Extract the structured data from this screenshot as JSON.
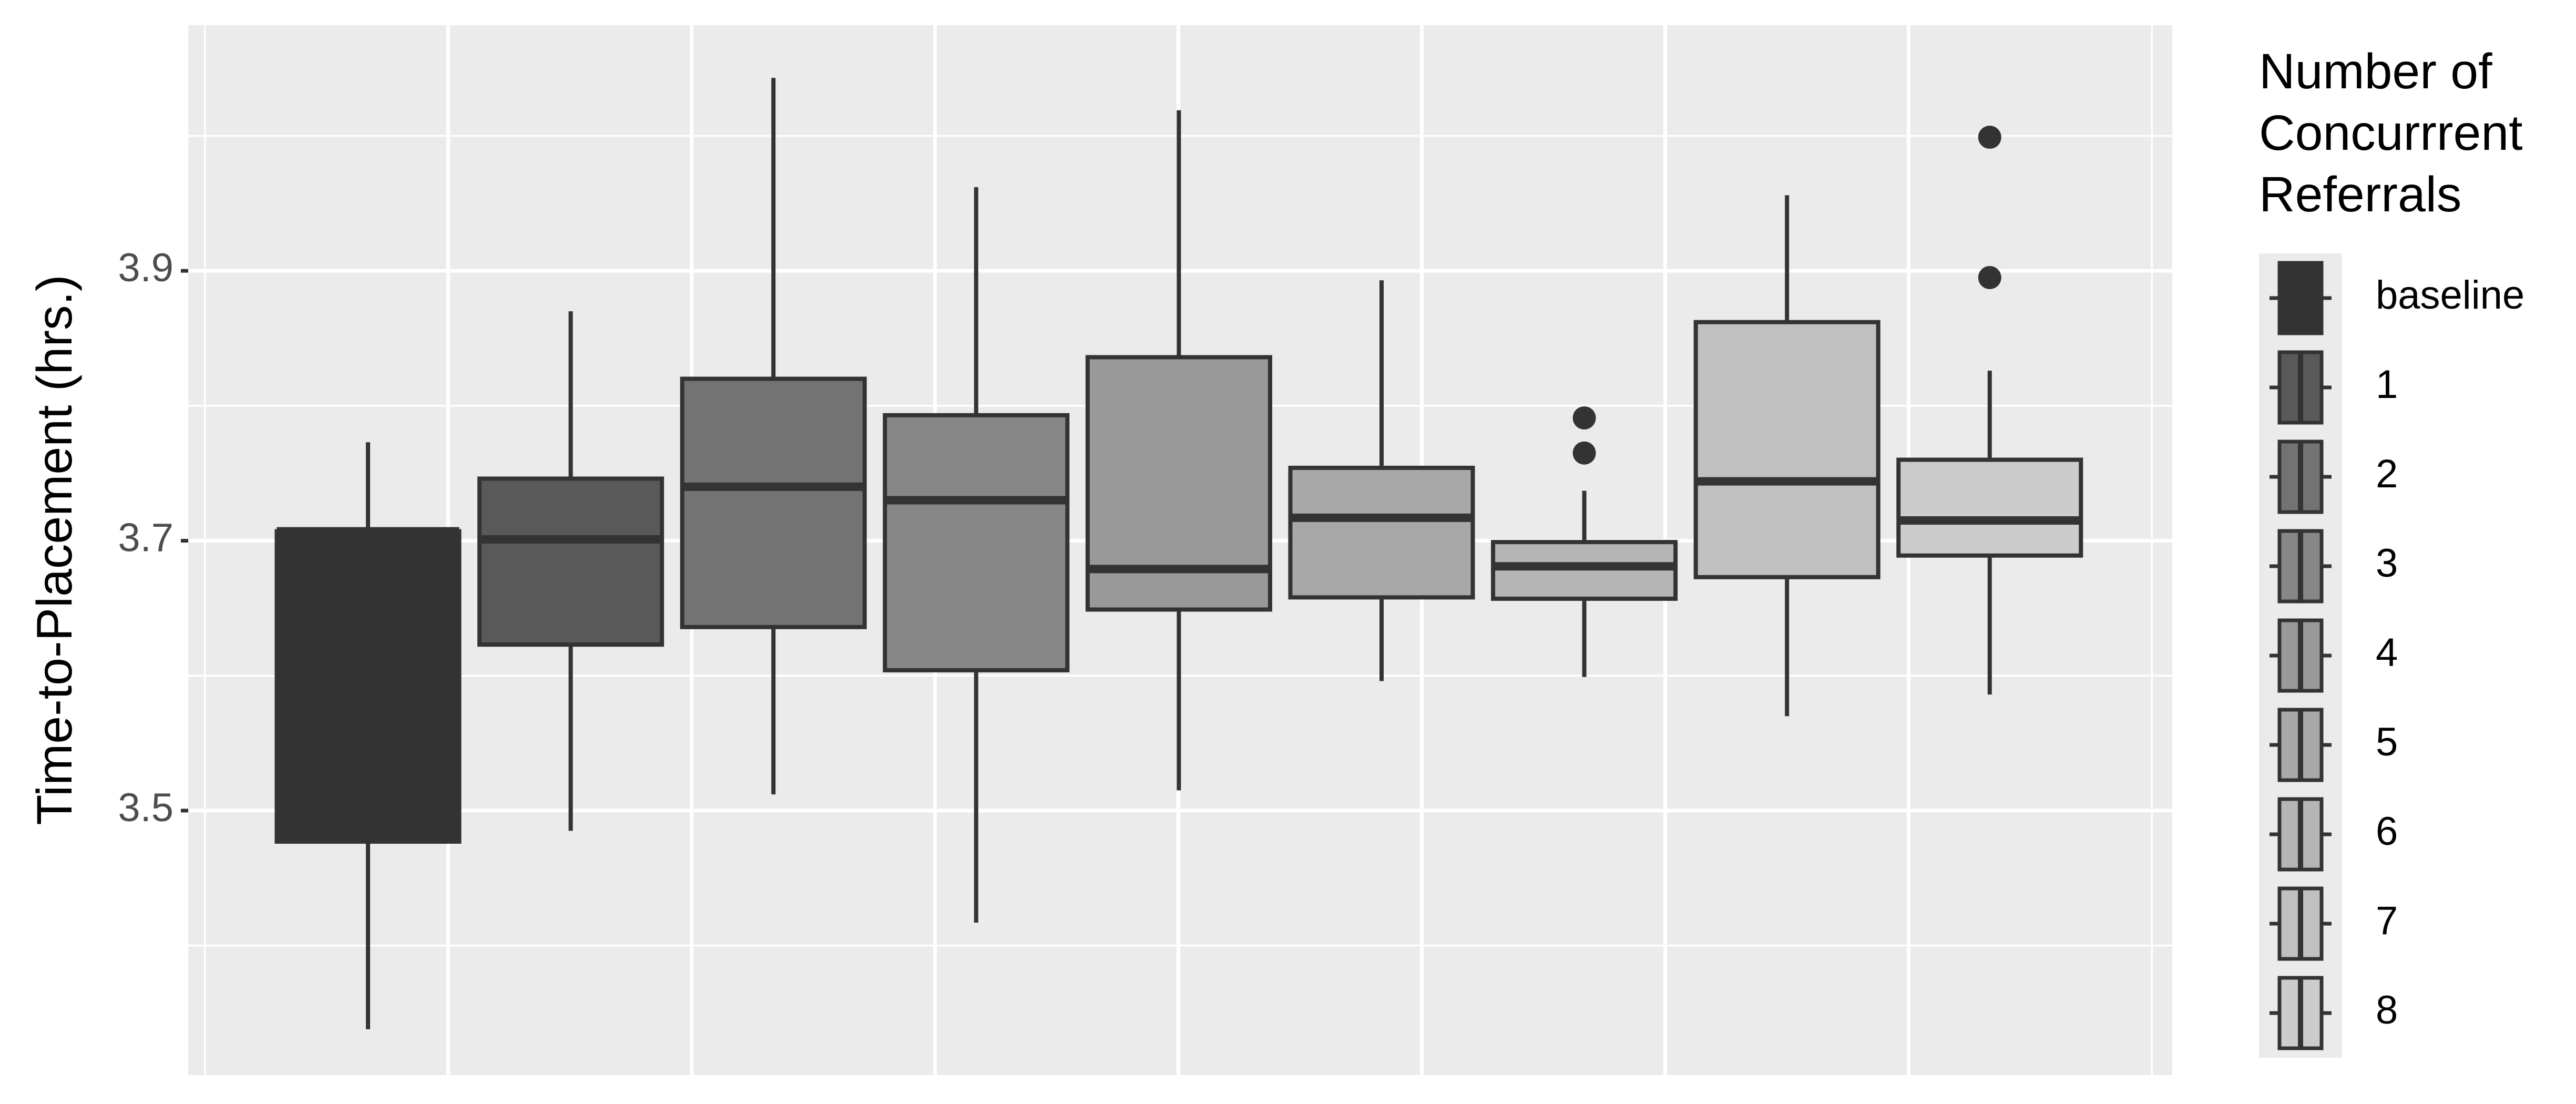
{
  "chart_data": {
    "type": "box",
    "y_label": "Time-to-Placement (hrs.)",
    "legend_title": [
      "Number of",
      "Concurrrent",
      "Referrals"
    ],
    "ylim": [
      3.304,
      4.082
    ],
    "yticks": [
      3.5,
      3.7,
      3.9
    ],
    "grid": true,
    "series": [
      {
        "name": "baseline",
        "color": "#333333",
        "min": 3.338,
        "q1": 3.477,
        "median": 3.707,
        "q3": 3.707,
        "max": 3.773,
        "outliers": []
      },
      {
        "name": "1",
        "color": "#595959",
        "min": 3.485,
        "q1": 3.623,
        "median": 3.701,
        "q3": 3.746,
        "max": 3.87,
        "outliers": []
      },
      {
        "name": "2",
        "color": "#737373",
        "min": 3.512,
        "q1": 3.636,
        "median": 3.74,
        "q3": 3.82,
        "max": 4.043,
        "outliers": []
      },
      {
        "name": "3",
        "color": "#878787",
        "min": 3.417,
        "q1": 3.604,
        "median": 3.73,
        "q3": 3.793,
        "max": 3.962,
        "outliers": []
      },
      {
        "name": "4",
        "color": "#999999",
        "min": 3.515,
        "q1": 3.649,
        "median": 3.679,
        "q3": 3.836,
        "max": 4.019,
        "outliers": []
      },
      {
        "name": "5",
        "color": "#a8a8a8",
        "min": 3.596,
        "q1": 3.658,
        "median": 3.717,
        "q3": 3.754,
        "max": 3.893,
        "outliers": []
      },
      {
        "name": "6",
        "color": "#b5b5b5",
        "min": 3.599,
        "q1": 3.657,
        "median": 3.681,
        "q3": 3.699,
        "max": 3.737,
        "outliers": [
          3.765,
          3.791
        ]
      },
      {
        "name": "7",
        "color": "#c0c0c0",
        "min": 3.57,
        "q1": 3.673,
        "median": 3.744,
        "q3": 3.862,
        "max": 3.956,
        "outliers": []
      },
      {
        "name": "8",
        "color": "#cccccc",
        "min": 3.586,
        "q1": 3.689,
        "median": 3.715,
        "q3": 3.76,
        "max": 3.826,
        "outliers": [
          3.895,
          3.999
        ]
      }
    ]
  }
}
